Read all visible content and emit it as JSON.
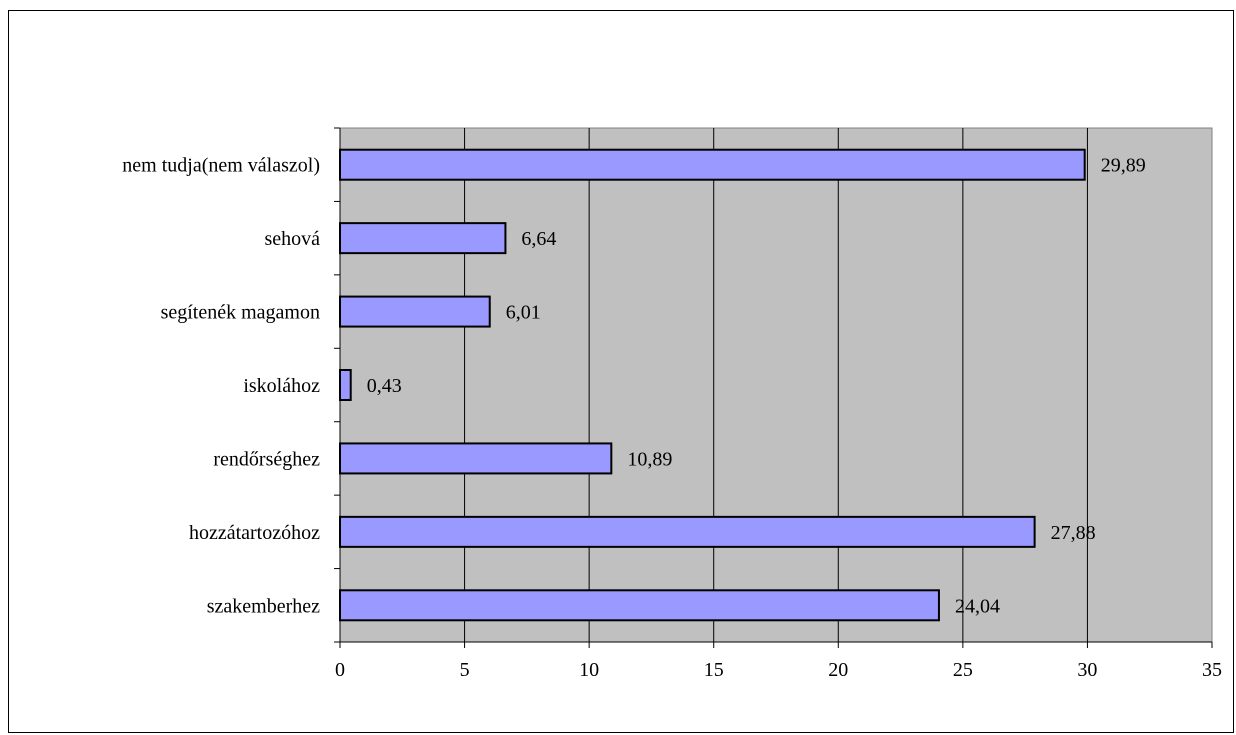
{
  "chart_data": {
    "type": "bar",
    "orientation": "horizontal",
    "categories": [
      "nem tudja(nem válaszol)",
      "sehová",
      "segítenék magamon",
      "iskolához",
      "rendőrséghez",
      "hozzátartozóhoz",
      "szakemberhez"
    ],
    "values": [
      29.89,
      6.64,
      6.01,
      0.43,
      10.89,
      27.88,
      24.04
    ],
    "data_labels": [
      "29,89",
      "6,64",
      "6,01",
      "0,43",
      "10,89",
      "27,88",
      "24,04"
    ],
    "xlim": [
      0,
      35
    ],
    "x_ticks": [
      "0",
      "5",
      "10",
      "15",
      "20",
      "25",
      "30",
      "35"
    ],
    "title": "",
    "xlabel": "",
    "ylabel": "",
    "grid": "vertical",
    "legend": "none",
    "colors": {
      "bar_fill": "#9999ff",
      "bar_stroke": "#000000",
      "plot_background": "#c0c0c0",
      "gridline": "#000000"
    }
  }
}
